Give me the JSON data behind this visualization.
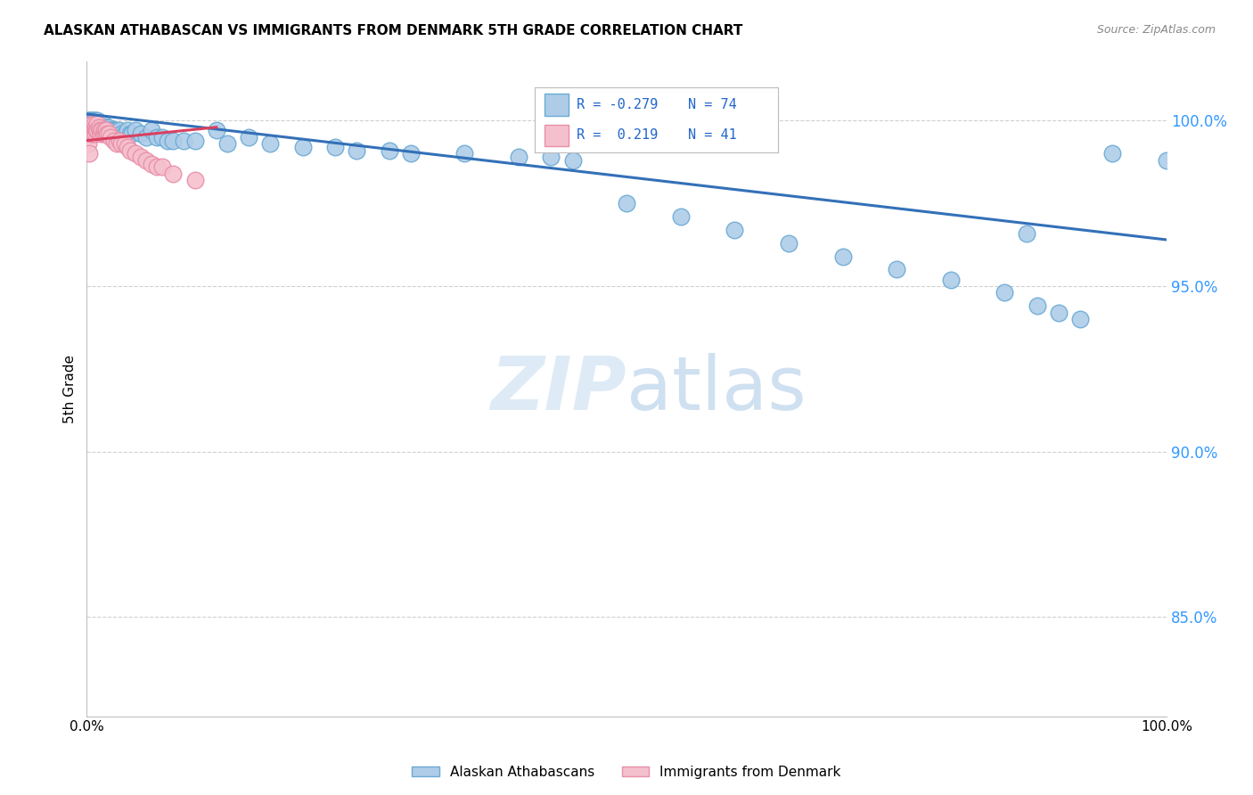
{
  "title": "ALASKAN ATHABASCAN VS IMMIGRANTS FROM DENMARK 5TH GRADE CORRELATION CHART",
  "source": "Source: ZipAtlas.com",
  "ylabel": "5th Grade",
  "ytick_labels": [
    "85.0%",
    "90.0%",
    "95.0%",
    "100.0%"
  ],
  "ytick_values": [
    0.85,
    0.9,
    0.95,
    1.0
  ],
  "xlim": [
    0.0,
    1.0
  ],
  "ylim": [
    0.82,
    1.018
  ],
  "legend_blue_label": "Alaskan Athabascans",
  "legend_pink_label": "Immigrants from Denmark",
  "R_blue": -0.279,
  "N_blue": 74,
  "R_pink": 0.219,
  "N_pink": 41,
  "blue_color": "#aecce8",
  "blue_edge": "#6aaad4",
  "pink_color": "#f5c0ce",
  "pink_edge": "#e88fa8",
  "blue_line_color": "#3370b8",
  "pink_line_color": "#d94060",
  "blue_line_x0": 0.0,
  "blue_line_y0": 1.002,
  "blue_line_x1": 1.0,
  "blue_line_y1": 0.964,
  "pink_line_x0": 0.0,
  "pink_line_y0": 0.994,
  "pink_line_x1": 0.12,
  "pink_line_y1": 0.998,
  "blue_scatter_x": [
    0.001,
    0.002,
    0.003,
    0.004,
    0.005,
    0.006,
    0.006,
    0.007,
    0.007,
    0.008,
    0.008,
    0.009,
    0.009,
    0.01,
    0.01,
    0.011,
    0.012,
    0.013,
    0.014,
    0.015,
    0.016,
    0.017,
    0.018,
    0.019,
    0.02,
    0.021,
    0.022,
    0.023,
    0.025,
    0.026,
    0.028,
    0.03,
    0.032,
    0.035,
    0.038,
    0.04,
    0.042,
    0.045,
    0.05,
    0.055,
    0.06,
    0.065,
    0.07,
    0.075,
    0.08,
    0.09,
    0.1,
    0.12,
    0.13,
    0.15,
    0.17,
    0.2,
    0.23,
    0.25,
    0.28,
    0.3,
    0.35,
    0.4,
    0.43,
    0.45,
    0.5,
    0.55,
    0.6,
    0.65,
    0.7,
    0.75,
    0.8,
    0.85,
    0.87,
    0.88,
    0.9,
    0.92,
    0.95,
    1.0
  ],
  "blue_scatter_y": [
    1.0,
    1.0,
    1.0,
    1.0,
    1.0,
    1.0,
    0.999,
    1.0,
    0.999,
    1.0,
    0.999,
    0.999,
    0.998,
    1.0,
    0.998,
    0.999,
    0.999,
    0.998,
    0.998,
    0.999,
    0.998,
    0.997,
    0.998,
    0.997,
    0.998,
    0.997,
    0.997,
    0.997,
    0.997,
    0.997,
    0.997,
    0.997,
    0.996,
    0.996,
    0.997,
    0.996,
    0.996,
    0.997,
    0.996,
    0.995,
    0.997,
    0.995,
    0.995,
    0.994,
    0.994,
    0.994,
    0.994,
    0.997,
    0.993,
    0.995,
    0.993,
    0.992,
    0.992,
    0.991,
    0.991,
    0.99,
    0.99,
    0.989,
    0.989,
    0.988,
    0.975,
    0.971,
    0.967,
    0.963,
    0.959,
    0.955,
    0.952,
    0.948,
    0.966,
    0.944,
    0.942,
    0.94,
    0.99,
    0.988
  ],
  "pink_scatter_x": [
    0.001,
    0.002,
    0.003,
    0.004,
    0.005,
    0.005,
    0.006,
    0.006,
    0.007,
    0.007,
    0.008,
    0.008,
    0.009,
    0.01,
    0.01,
    0.011,
    0.012,
    0.013,
    0.014,
    0.015,
    0.016,
    0.017,
    0.018,
    0.019,
    0.02,
    0.022,
    0.025,
    0.028,
    0.03,
    0.032,
    0.035,
    0.038,
    0.04,
    0.045,
    0.05,
    0.055,
    0.06,
    0.065,
    0.07,
    0.08,
    0.1
  ],
  "pink_scatter_y": [
    0.993,
    0.99,
    0.997,
    0.996,
    0.999,
    0.997,
    0.998,
    0.996,
    0.999,
    0.997,
    0.998,
    0.996,
    0.997,
    0.999,
    0.997,
    0.998,
    0.997,
    0.996,
    0.997,
    0.996,
    0.997,
    0.996,
    0.997,
    0.996,
    0.996,
    0.995,
    0.994,
    0.993,
    0.994,
    0.993,
    0.993,
    0.992,
    0.991,
    0.99,
    0.989,
    0.988,
    0.987,
    0.986,
    0.986,
    0.984,
    0.982
  ]
}
